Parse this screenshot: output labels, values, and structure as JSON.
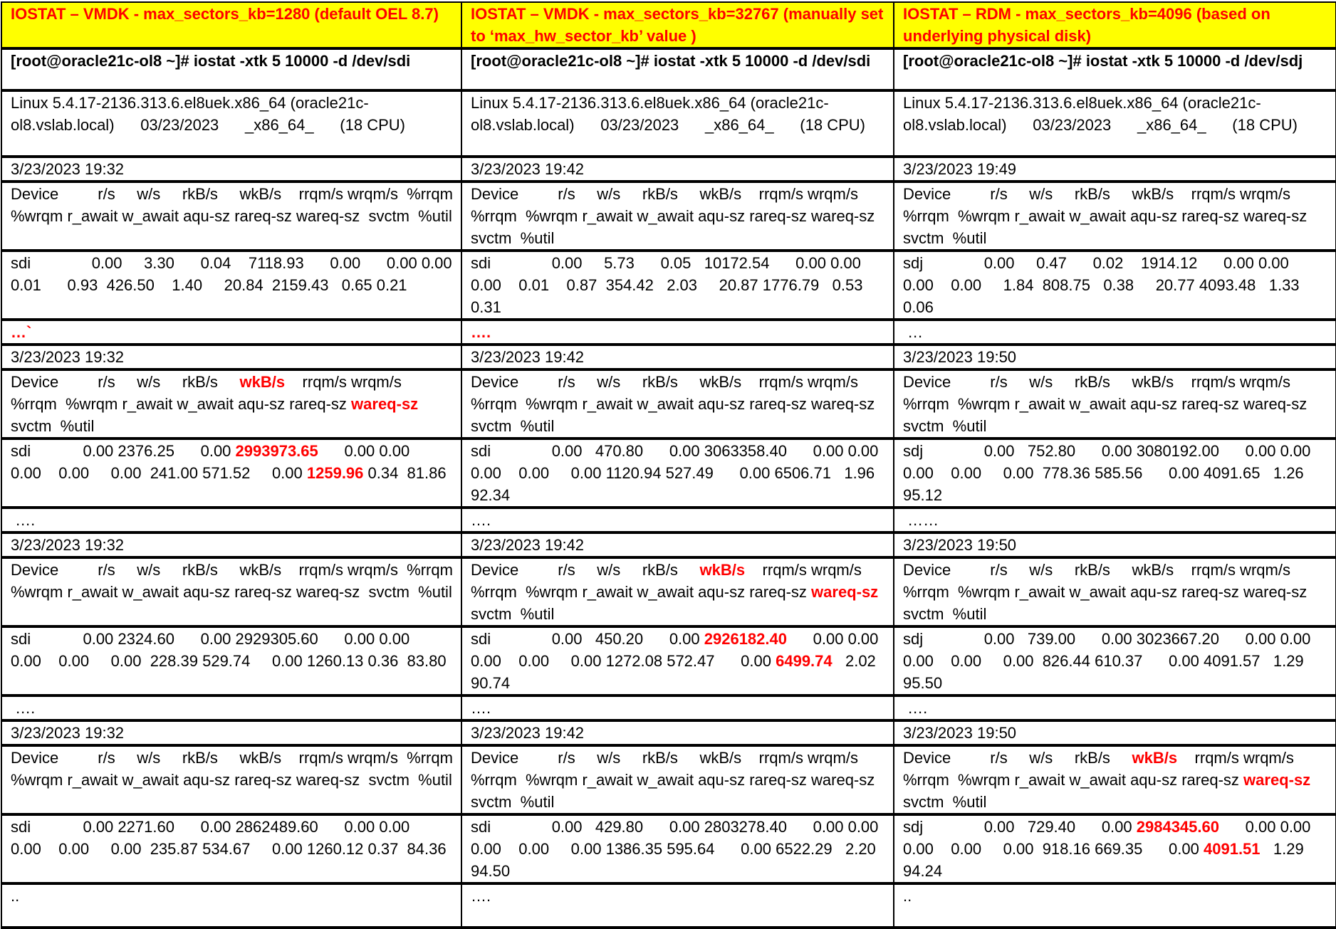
{
  "colors": {
    "title_bg": "#ffff00",
    "highlight": "#ff0000"
  },
  "titles": [
    "IOSTAT – VMDK - max_sectors_kb=1280 (default OEL 8.7)",
    "IOSTAT – VMDK - max_sectors_kb=32767 (manually set to ‘max_hw_sector_kb’ value )",
    "IOSTAT – RDM - max_sectors_kb=4096 (based on underlying physical disk)"
  ],
  "commands": [
    "[root@oracle21c-ol8 ~]# iostat -xtk 5 10000 -d /dev/sdi",
    "[root@oracle21c-ol8 ~]# iostat -xtk 5 10000 -d /dev/sdi",
    "[root@oracle21c-ol8 ~]# iostat -xtk 5 10000 -d /dev/sdj"
  ],
  "sysinfo": [
    "Linux 5.4.17-2136.313.6.el8uek.x86_64 (oracle21c-ol8.vslab.local)      03/23/2023      _x86_64_      (18 CPU)",
    "Linux 5.4.17-2136.313.6.el8uek.x86_64 (oracle21c-ol8.vslab.local)      03/23/2023      _x86_64_      (18 CPU)",
    "Linux 5.4.17-2136.313.6.el8uek.x86_64 (oracle21c-ol8.vslab.local)      03/23/2023      _x86_64_      (18 CPU)"
  ],
  "blocks": [
    {
      "times": [
        "3/23/2023 19:32",
        "3/23/2023 19:42",
        "3/23/2023 19:49"
      ],
      "headers": [
        [
          {
            "t": "Device         r/s     w/s     rkB/s     wkB/s    rrqm/s wrqm/s  %rrqm  %wrqm r_await w_await aqu-sz rareq-sz wareq-sz  svctm  %util"
          }
        ],
        [
          {
            "t": "Device         r/s     w/s     rkB/s     wkB/s    rrqm/s wrqm/s  %rrqm  %wrqm r_await w_await aqu-sz rareq-sz wareq-sz  svctm  %util"
          }
        ],
        [
          {
            "t": "Device         r/s     w/s     rkB/s     wkB/s    rrqm/s wrqm/s  %rrqm  %wrqm r_await w_await aqu-sz rareq-sz wareq-sz  svctm  %util"
          }
        ]
      ],
      "values": [
        [
          {
            "t": "sdi              0.00     3.30      0.04    7118.93      0.00      0.00 0.00    0.01      0.93  426.50    1.40     20.84  2159.43   0.65 0.21"
          }
        ],
        [
          {
            "t": "sdi              0.00     5.73      0.05   10172.54      0.00 0.00    0.00    0.01    0.87  354.42   2.03     20.87 1776.79   0.53   0.31"
          }
        ],
        [
          {
            "t": "sdj              0.00     0.47      0.02    1914.12      0.00 0.00    0.00    0.00     1.84  808.75   0.38     20.77 4093.48   1.33   0.06"
          }
        ]
      ],
      "dots": [
        [
          {
            "t": "…`",
            "red": true
          }
        ],
        [
          {
            "t": "….",
            "red": true
          }
        ],
        [
          {
            "t": " …"
          }
        ]
      ]
    },
    {
      "times": [
        "3/23/2023 19:32",
        "3/23/2023 19:42",
        "3/23/2023 19:50"
      ],
      "headers": [
        [
          {
            "t": "Device         r/s     w/s     rkB/s     "
          },
          {
            "t": "wkB/s",
            "red": true
          },
          {
            "t": "    rrqm/s wrqm/s  %rrqm  %wrqm r_await w_await aqu-sz rareq-sz "
          },
          {
            "t": "wareq-sz",
            "red": true
          },
          {
            "t": "  svctm  %util"
          }
        ],
        [
          {
            "t": "Device         r/s     w/s     rkB/s     wkB/s    rrqm/s wrqm/s  %rrqm  %wrqm r_await w_await aqu-sz rareq-sz wareq-sz  svctm  %util"
          }
        ],
        [
          {
            "t": "Device         r/s     w/s     rkB/s     wkB/s    rrqm/s wrqm/s  %rrqm  %wrqm r_await w_await aqu-sz rareq-sz wareq-sz  svctm  %util"
          }
        ]
      ],
      "values": [
        [
          {
            "t": "sdi            0.00 2376.25      0.00 "
          },
          {
            "t": "2993973.65",
            "red": true
          },
          {
            "t": "      0.00 0.00    0.00    0.00     0.00  241.00 571.52     0.00 "
          },
          {
            "t": "1259.96",
            "red": true
          },
          {
            "t": " 0.34  81.86"
          }
        ],
        [
          {
            "t": "sdi              0.00   470.80      0.00 3063358.40      0.00 0.00    0.00    0.00     0.00 1120.94 527.49      0.00 6506.71   1.96  92.34"
          }
        ],
        [
          {
            "t": "sdj              0.00   752.80      0.00 3080192.00      0.00 0.00    0.00    0.00     0.00  778.36 585.56      0.00 4091.65   1.26  95.12"
          }
        ]
      ],
      "dots": [
        [
          {
            "t": " …."
          }
        ],
        [
          {
            "t": "…."
          }
        ],
        [
          {
            "t": " ……"
          }
        ]
      ]
    },
    {
      "times": [
        "3/23/2023 19:32",
        "3/23/2023 19:42",
        "3/23/2023 19:50"
      ],
      "headers": [
        [
          {
            "t": "Device         r/s     w/s     rkB/s     wkB/s    rrqm/s wrqm/s  %rrqm  %wrqm r_await w_await aqu-sz rareq-sz wareq-sz  svctm  %util"
          }
        ],
        [
          {
            "t": "Device         r/s     w/s     rkB/s     "
          },
          {
            "t": "wkB/s",
            "red": true
          },
          {
            "t": "    rrqm/s wrqm/s  %rrqm  %wrqm r_await w_await aqu-sz rareq-sz "
          },
          {
            "t": "wareq-sz",
            "red": true
          },
          {
            "t": "  svctm  %util"
          }
        ],
        [
          {
            "t": "Device         r/s     w/s     rkB/s     wkB/s    rrqm/s wrqm/s  %rrqm  %wrqm r_await w_await aqu-sz rareq-sz wareq-sz  svctm  %util"
          }
        ]
      ],
      "values": [
        [
          {
            "t": "sdi            0.00 2324.60      0.00 2929305.60      0.00 0.00    0.00    0.00     0.00  228.39 529.74     0.00 1260.13 0.36  83.80"
          }
        ],
        [
          {
            "t": "sdi              0.00   450.20      0.00 "
          },
          {
            "t": "2926182.40",
            "red": true
          },
          {
            "t": "      0.00 0.00    0.00    0.00     0.00 1272.08 572.47      0.00 "
          },
          {
            "t": "6499.74",
            "red": true
          },
          {
            "t": "   2.02  90.74"
          }
        ],
        [
          {
            "t": "sdj              0.00   739.00      0.00 3023667.20      0.00 0.00    0.00    0.00     0.00  826.44 610.37      0.00 4091.57   1.29  95.50"
          }
        ]
      ],
      "dots": [
        [
          {
            "t": " …."
          }
        ],
        [
          {
            "t": "…."
          }
        ],
        [
          {
            "t": " …."
          }
        ]
      ]
    },
    {
      "times": [
        "3/23/2023 19:32",
        "3/23/2023 19:42",
        "3/23/2023 19:50"
      ],
      "headers": [
        [
          {
            "t": "Device         r/s     w/s     rkB/s     wkB/s    rrqm/s wrqm/s  %rrqm  %wrqm r_await w_await aqu-sz rareq-sz wareq-sz  svctm  %util"
          }
        ],
        [
          {
            "t": "Device         r/s     w/s     rkB/s     wkB/s    rrqm/s wrqm/s  %rrqm  %wrqm r_await w_await aqu-sz rareq-sz wareq-sz  svctm  %util"
          }
        ],
        [
          {
            "t": "Device         r/s     w/s     rkB/s     "
          },
          {
            "t": "wkB/s",
            "red": true
          },
          {
            "t": "    rrqm/s wrqm/s  %rrqm  %wrqm r_await w_await aqu-sz rareq-sz "
          },
          {
            "t": "wareq-sz",
            "red": true
          },
          {
            "t": "  svctm  %util"
          }
        ]
      ],
      "values": [
        [
          {
            "t": "sdi            0.00 2271.60      0.00 2862489.60      0.00 0.00    0.00    0.00     0.00  235.87 534.67     0.00 1260.12 0.37  84.36"
          }
        ],
        [
          {
            "t": "sdi              0.00   429.80      0.00 2803278.40      0.00 0.00    0.00    0.00     0.00 1386.35 595.64      0.00 6522.29   2.20  94.50"
          }
        ],
        [
          {
            "t": "sdj              0.00   729.40      0.00 "
          },
          {
            "t": "2984345.60",
            "red": true
          },
          {
            "t": "      0.00 0.00    0.00    0.00     0.00  918.16 669.35      0.00 "
          },
          {
            "t": "4091.51",
            "red": true
          },
          {
            "t": "   1.29  94.24"
          }
        ]
      ],
      "dots": [
        [
          {
            "t": ".."
          }
        ],
        [
          {
            "t": "…."
          }
        ],
        [
          {
            "t": ".."
          }
        ]
      ]
    }
  ]
}
